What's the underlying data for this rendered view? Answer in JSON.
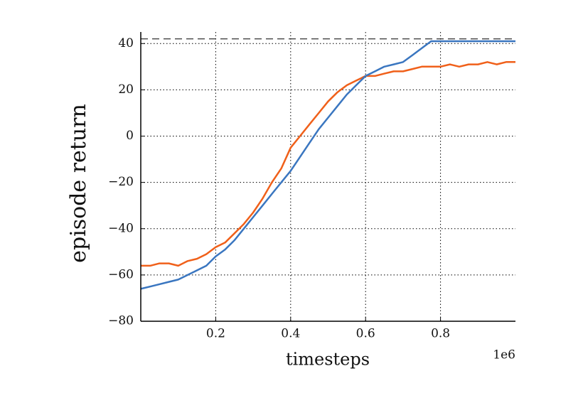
{
  "chart_data": {
    "type": "line",
    "x_label": "timesteps",
    "y_label": "episode return",
    "x_offset_label": "1e6",
    "x": [
      0,
      0.025,
      0.05,
      0.075,
      0.1,
      0.125,
      0.15,
      0.175,
      0.2,
      0.225,
      0.25,
      0.275,
      0.3,
      0.325,
      0.35,
      0.375,
      0.4,
      0.425,
      0.45,
      0.475,
      0.5,
      0.525,
      0.55,
      0.575,
      0.6,
      0.625,
      0.65,
      0.675,
      0.7,
      0.725,
      0.75,
      0.775,
      0.8,
      0.825,
      0.85,
      0.875,
      0.9,
      0.925,
      0.95,
      0.975,
      1.0
    ],
    "series": [
      {
        "color": "#f0601a",
        "values": [
          -56,
          -56,
          -55,
          -55,
          -56,
          -54,
          -53,
          -51,
          -48,
          -46,
          -42,
          -38,
          -33,
          -27,
          -20,
          -14,
          -5,
          0,
          5,
          10,
          15,
          19,
          22,
          24,
          26,
          26,
          27,
          28,
          28,
          29,
          30,
          30,
          30,
          31,
          30,
          31,
          31,
          32,
          31,
          32,
          32
        ]
      },
      {
        "color": "#3a76c0",
        "values": [
          -66,
          -65,
          -64,
          -63,
          -62,
          -60,
          -58,
          -56,
          -52,
          -49,
          -45,
          -40,
          -35,
          -30,
          -25,
          -20,
          -15,
          -9,
          -3,
          3,
          8,
          13,
          18,
          22,
          26,
          28,
          30,
          31,
          32,
          35,
          38,
          41,
          41,
          41,
          41,
          41,
          41,
          41,
          41,
          41,
          41
        ]
      }
    ],
    "hline": 42,
    "xlim": [
      0,
      1.0
    ],
    "xticks": [
      0.2,
      0.4,
      0.6,
      0.8
    ],
    "ylim": [
      -80,
      45
    ],
    "yticks": [
      {
        "value": -80,
        "label": "−80"
      },
      {
        "value": -60,
        "label": "−60"
      },
      {
        "value": -40,
        "label": "−40"
      },
      {
        "value": -20,
        "label": "−20"
      },
      0,
      20,
      40
    ],
    "grid": true
  }
}
